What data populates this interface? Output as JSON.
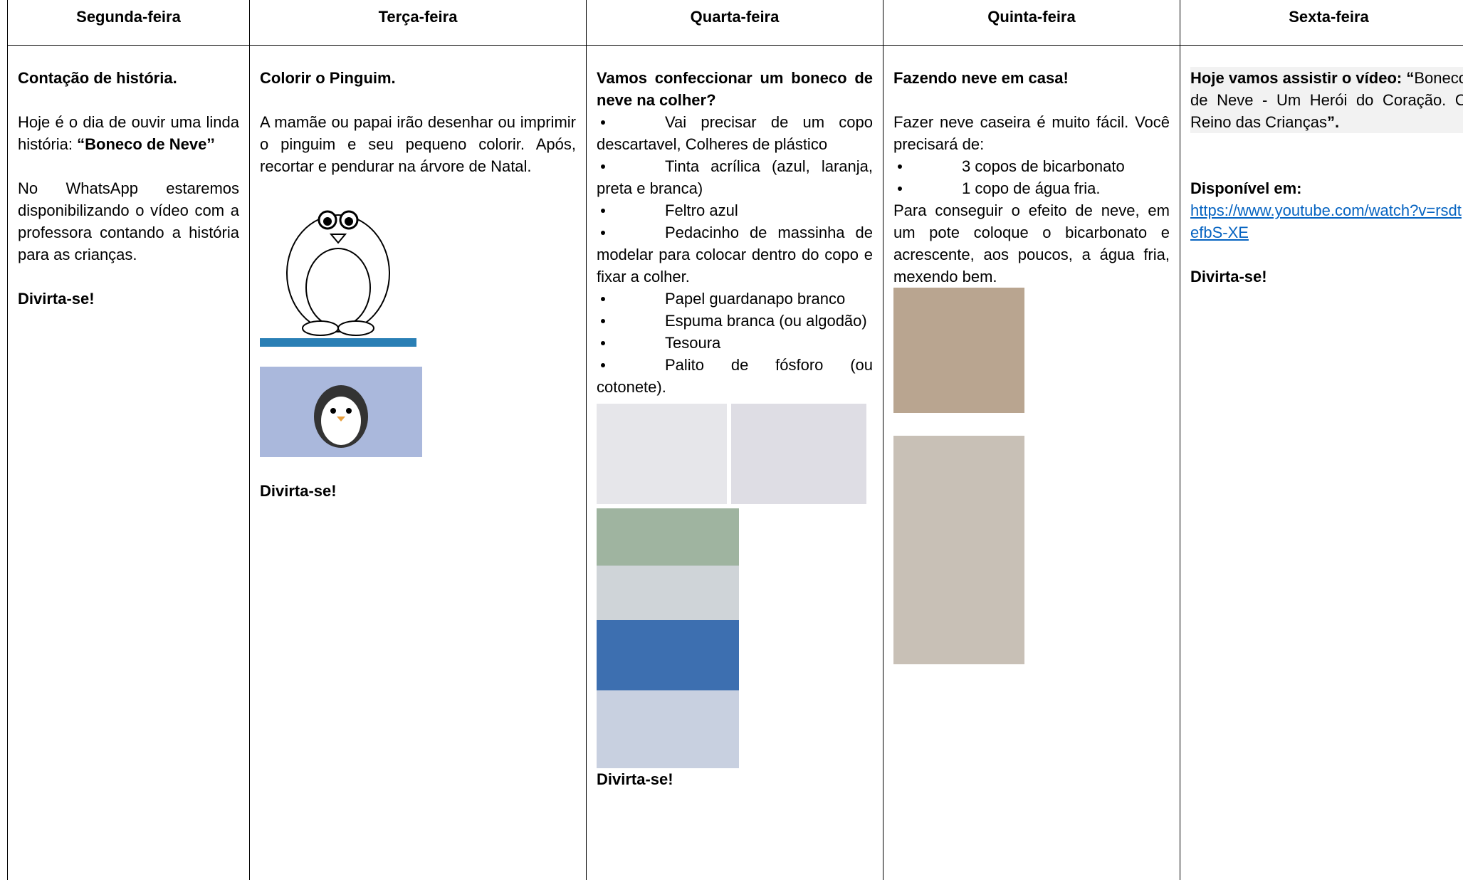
{
  "days": [
    "Segunda-feira",
    "Terça-feira",
    "Quarta-feira",
    "Quinta-feira",
    "Sexta-feira"
  ],
  "monday": {
    "title": "Contação de história.",
    "intro": "Hoje é o dia de ouvir uma linda história: ",
    "story": "“Boneco de Neve’’",
    "text": "No WhatsApp estaremos disponibilizando o vídeo com a professora contando a história para as crianças.",
    "closing": "Divirta-se!"
  },
  "tuesday": {
    "title": "Colorir o Pinguim.",
    "text": "A mamãe ou papai irão desenhar ou imprimir o pinguim e seu pequeno colorir. Após, recortar e pendurar na árvore de Natal.",
    "closing": "Divirta-se!"
  },
  "wednesday": {
    "title": "Vamos confeccionar um boneco de neve na colher?",
    "items": [
      "Vai precisar de um copo descartavel, Colheres de plástico",
      "Tinta acrílica (azul, laranja, preta e branca)",
      "Feltro azul",
      "Pedacinho de massinha de modelar para colocar dentro do copo e fixar a colher.",
      "Papel guardanapo branco",
      "Espuma branca (ou algodão)",
      "Tesoura",
      "Palito de fósforo (ou cotonete)."
    ],
    "closing": "Divirta-se!"
  },
  "thursday": {
    "title": "Fazendo neve em casa!",
    "text": "Fazer neve caseira é muito fácil. Você precisará de:",
    "items": [
      "3 copos de bicarbonato",
      "1 copo de água fria."
    ],
    "steps": "Para conseguir o efeito de neve, em um pote coloque o bicarbonato e acrescente, aos poucos, a água fria, mexendo bem."
  },
  "friday": {
    "lead": "Hoje vamos assistir o vídeo:",
    "open": "“",
    "video": "Boneco de Neve - Um Herói do Coração. O Reino das Crianças",
    "close": "”.",
    "available": "Disponível em:",
    "link": "https://www.youtube.com/watch?v=rsdtefbS-XE",
    "closing": "Divirta-se!"
  }
}
